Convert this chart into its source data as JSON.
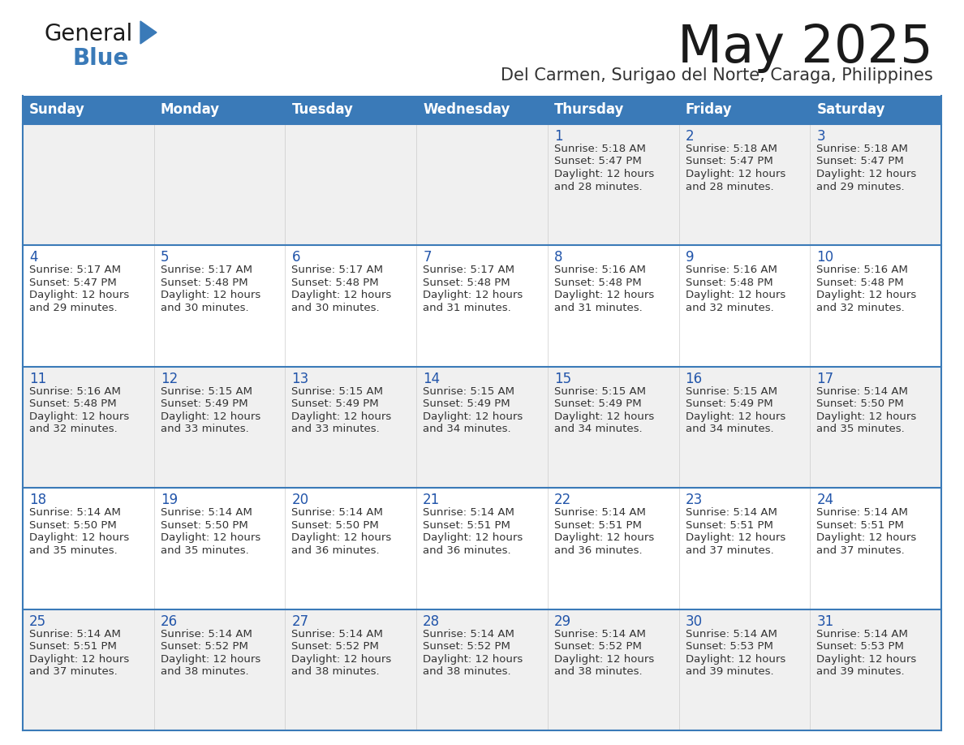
{
  "title": "May 2025",
  "subtitle": "Del Carmen, Surigao del Norte, Caraga, Philippines",
  "days_of_week": [
    "Sunday",
    "Monday",
    "Tuesday",
    "Wednesday",
    "Thursday",
    "Friday",
    "Saturday"
  ],
  "header_bg_color": "#3a7ab8",
  "header_text_color": "#ffffff",
  "cell_bg_even": "#f0f0f0",
  "cell_bg_odd": "#ffffff",
  "day_number_color": "#2255aa",
  "info_text_color": "#333333",
  "border_color": "#3a7ab8",
  "light_border_color": "#cccccc",
  "calendar_data": [
    [
      {
        "day": "",
        "sunrise": "",
        "sunset": "",
        "daylight_hours": "",
        "daylight_mins": ""
      },
      {
        "day": "",
        "sunrise": "",
        "sunset": "",
        "daylight_hours": "",
        "daylight_mins": ""
      },
      {
        "day": "",
        "sunrise": "",
        "sunset": "",
        "daylight_hours": "",
        "daylight_mins": ""
      },
      {
        "day": "",
        "sunrise": "",
        "sunset": "",
        "daylight_hours": "",
        "daylight_mins": ""
      },
      {
        "day": "1",
        "sunrise": "5:18 AM",
        "sunset": "5:47 PM",
        "daylight_hours": "12",
        "daylight_mins": "28"
      },
      {
        "day": "2",
        "sunrise": "5:18 AM",
        "sunset": "5:47 PM",
        "daylight_hours": "12",
        "daylight_mins": "28"
      },
      {
        "day": "3",
        "sunrise": "5:18 AM",
        "sunset": "5:47 PM",
        "daylight_hours": "12",
        "daylight_mins": "29"
      }
    ],
    [
      {
        "day": "4",
        "sunrise": "5:17 AM",
        "sunset": "5:47 PM",
        "daylight_hours": "12",
        "daylight_mins": "29"
      },
      {
        "day": "5",
        "sunrise": "5:17 AM",
        "sunset": "5:48 PM",
        "daylight_hours": "12",
        "daylight_mins": "30"
      },
      {
        "day": "6",
        "sunrise": "5:17 AM",
        "sunset": "5:48 PM",
        "daylight_hours": "12",
        "daylight_mins": "30"
      },
      {
        "day": "7",
        "sunrise": "5:17 AM",
        "sunset": "5:48 PM",
        "daylight_hours": "12",
        "daylight_mins": "31"
      },
      {
        "day": "8",
        "sunrise": "5:16 AM",
        "sunset": "5:48 PM",
        "daylight_hours": "12",
        "daylight_mins": "31"
      },
      {
        "day": "9",
        "sunrise": "5:16 AM",
        "sunset": "5:48 PM",
        "daylight_hours": "12",
        "daylight_mins": "32"
      },
      {
        "day": "10",
        "sunrise": "5:16 AM",
        "sunset": "5:48 PM",
        "daylight_hours": "12",
        "daylight_mins": "32"
      }
    ],
    [
      {
        "day": "11",
        "sunrise": "5:16 AM",
        "sunset": "5:48 PM",
        "daylight_hours": "12",
        "daylight_mins": "32"
      },
      {
        "day": "12",
        "sunrise": "5:15 AM",
        "sunset": "5:49 PM",
        "daylight_hours": "12",
        "daylight_mins": "33"
      },
      {
        "day": "13",
        "sunrise": "5:15 AM",
        "sunset": "5:49 PM",
        "daylight_hours": "12",
        "daylight_mins": "33"
      },
      {
        "day": "14",
        "sunrise": "5:15 AM",
        "sunset": "5:49 PM",
        "daylight_hours": "12",
        "daylight_mins": "34"
      },
      {
        "day": "15",
        "sunrise": "5:15 AM",
        "sunset": "5:49 PM",
        "daylight_hours": "12",
        "daylight_mins": "34"
      },
      {
        "day": "16",
        "sunrise": "5:15 AM",
        "sunset": "5:49 PM",
        "daylight_hours": "12",
        "daylight_mins": "34"
      },
      {
        "day": "17",
        "sunrise": "5:14 AM",
        "sunset": "5:50 PM",
        "daylight_hours": "12",
        "daylight_mins": "35"
      }
    ],
    [
      {
        "day": "18",
        "sunrise": "5:14 AM",
        "sunset": "5:50 PM",
        "daylight_hours": "12",
        "daylight_mins": "35"
      },
      {
        "day": "19",
        "sunrise": "5:14 AM",
        "sunset": "5:50 PM",
        "daylight_hours": "12",
        "daylight_mins": "35"
      },
      {
        "day": "20",
        "sunrise": "5:14 AM",
        "sunset": "5:50 PM",
        "daylight_hours": "12",
        "daylight_mins": "36"
      },
      {
        "day": "21",
        "sunrise": "5:14 AM",
        "sunset": "5:51 PM",
        "daylight_hours": "12",
        "daylight_mins": "36"
      },
      {
        "day": "22",
        "sunrise": "5:14 AM",
        "sunset": "5:51 PM",
        "daylight_hours": "12",
        "daylight_mins": "36"
      },
      {
        "day": "23",
        "sunrise": "5:14 AM",
        "sunset": "5:51 PM",
        "daylight_hours": "12",
        "daylight_mins": "37"
      },
      {
        "day": "24",
        "sunrise": "5:14 AM",
        "sunset": "5:51 PM",
        "daylight_hours": "12",
        "daylight_mins": "37"
      }
    ],
    [
      {
        "day": "25",
        "sunrise": "5:14 AM",
        "sunset": "5:51 PM",
        "daylight_hours": "12",
        "daylight_mins": "37"
      },
      {
        "day": "26",
        "sunrise": "5:14 AM",
        "sunset": "5:52 PM",
        "daylight_hours": "12",
        "daylight_mins": "38"
      },
      {
        "day": "27",
        "sunrise": "5:14 AM",
        "sunset": "5:52 PM",
        "daylight_hours": "12",
        "daylight_mins": "38"
      },
      {
        "day": "28",
        "sunrise": "5:14 AM",
        "sunset": "5:52 PM",
        "daylight_hours": "12",
        "daylight_mins": "38"
      },
      {
        "day": "29",
        "sunrise": "5:14 AM",
        "sunset": "5:52 PM",
        "daylight_hours": "12",
        "daylight_mins": "38"
      },
      {
        "day": "30",
        "sunrise": "5:14 AM",
        "sunset": "5:53 PM",
        "daylight_hours": "12",
        "daylight_mins": "39"
      },
      {
        "day": "31",
        "sunrise": "5:14 AM",
        "sunset": "5:53 PM",
        "daylight_hours": "12",
        "daylight_mins": "39"
      }
    ]
  ]
}
